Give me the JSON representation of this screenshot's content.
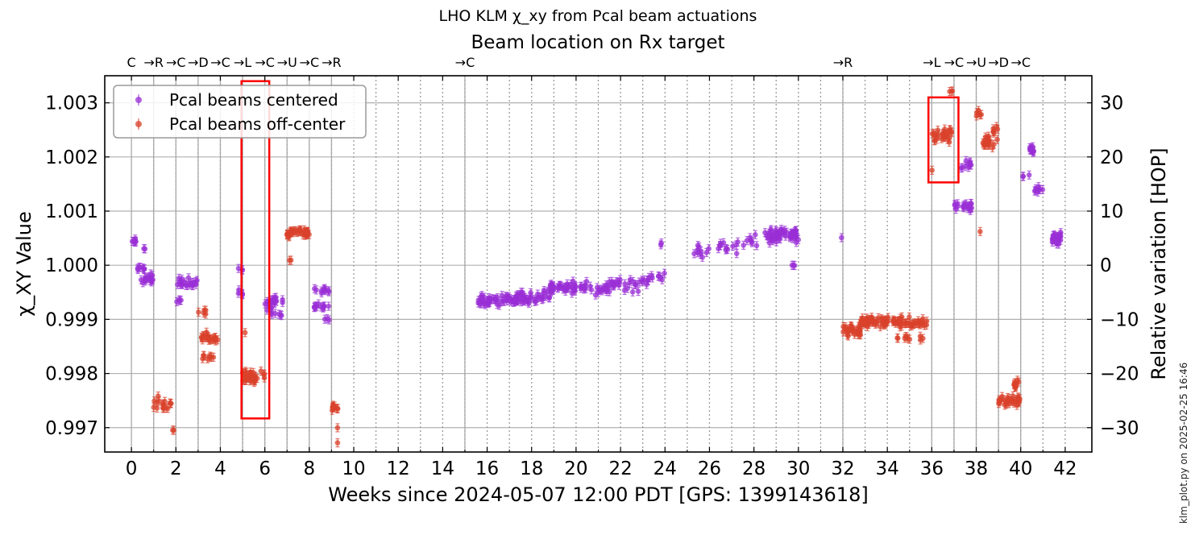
{
  "chart_data": {
    "type": "scatter",
    "suptitle": "LHO KLM χ_xy from Pcal beam actuations",
    "title": "Beam location on Rx target",
    "xlabel": "Weeks since 2024-05-07 12:00 PDT [GPS: 1399143618]",
    "ylabel_left": "χ_XY Value",
    "ylabel_right": "Relative variation [HOP]",
    "xlim": [
      -1.2,
      43.2
    ],
    "ylim": [
      0.99655,
      1.0035
    ],
    "x_ticks": [
      0,
      2,
      4,
      6,
      8,
      10,
      12,
      14,
      16,
      18,
      20,
      22,
      24,
      26,
      28,
      30,
      32,
      34,
      36,
      38,
      40,
      42
    ],
    "y_ticks": [
      0.997,
      0.998,
      0.999,
      1.0,
      1.001,
      1.002,
      1.003
    ],
    "y_tick_labels": [
      "0.997",
      "0.998",
      "0.999",
      "1.000",
      "1.001",
      "1.002",
      "1.003"
    ],
    "right_ticks": [
      -30,
      -20,
      -10,
      0,
      10,
      20,
      30
    ],
    "right_tick_labels": [
      "−30",
      "−20",
      "−10",
      "0",
      "10",
      "20",
      "30"
    ],
    "right_reference": 1.0,
    "right_scale_per_unit": 0.0001,
    "grid": true,
    "legend_position": "upper-left",
    "legend": [
      {
        "label": "Pcal beams centered",
        "color": "#9a2fd6"
      },
      {
        "label": "Pcal beams off-center",
        "color": "#d9412b"
      }
    ],
    "location_changes": [
      {
        "week": 0.0,
        "label": "C"
      },
      {
        "week": 1.0,
        "label": "→R"
      },
      {
        "week": 2.0,
        "label": "→C"
      },
      {
        "week": 3.0,
        "label": "→D"
      },
      {
        "week": 4.0,
        "label": "→C"
      },
      {
        "week": 5.0,
        "label": "→L"
      },
      {
        "week": 6.0,
        "label": "→C"
      },
      {
        "week": 7.0,
        "label": "→U"
      },
      {
        "week": 8.0,
        "label": "→C"
      },
      {
        "week": 9.0,
        "label": "→R"
      },
      {
        "week": 15.0,
        "label": "→C"
      },
      {
        "week": 32.0,
        "label": "→R"
      },
      {
        "week": 36.0,
        "label": "→L"
      },
      {
        "week": 37.0,
        "label": "→C"
      },
      {
        "week": 38.0,
        "label": "→U"
      },
      {
        "week": 39.0,
        "label": "→D"
      },
      {
        "week": 40.0,
        "label": "→C"
      }
    ],
    "weekly_lines": [
      1,
      2,
      3,
      4,
      5,
      6,
      7,
      8,
      9,
      10,
      11,
      12,
      13,
      14,
      15,
      16,
      17,
      18,
      19,
      20,
      21,
      22,
      23,
      24,
      25,
      26,
      27,
      28,
      29,
      30,
      31,
      32,
      33,
      34,
      35,
      36,
      37,
      38,
      39,
      40,
      41,
      42
    ],
    "highlight_boxes": [
      {
        "x_range": [
          4.95,
          6.2
        ],
        "y_range": [
          0.99717,
          1.0034
        ]
      },
      {
        "x_range": [
          35.85,
          37.2
        ],
        "y_range": [
          1.00153,
          1.0031
        ]
      }
    ],
    "series": [
      {
        "name": "Pcal beams centered",
        "color": "#9a2fd6",
        "clusters": [
          {
            "x": [
              0.0,
              0.3
            ],
            "y": 1.00045,
            "spread": 0.0001,
            "n": 6
          },
          {
            "x": [
              0.2,
              0.6
            ],
            "y": 0.99995,
            "spread": 5e-05,
            "n": 8
          },
          {
            "x": [
              0.4,
              1.0
            ],
            "y": 0.99975,
            "spread": 0.00012,
            "n": 14
          },
          {
            "x": [
              0.5,
              0.7
            ],
            "y": 1.0003,
            "spread": 3e-05,
            "n": 2
          },
          {
            "x": [
              2.0,
              3.0
            ],
            "y": 0.99968,
            "spread": 0.00013,
            "n": 22
          },
          {
            "x": [
              2.0,
              2.6
            ],
            "y": 0.99935,
            "spread": 3e-05,
            "n": 4
          },
          {
            "x": [
              4.8,
              5.0
            ],
            "y": 0.9999,
            "spread": 0.0001,
            "n": 3
          },
          {
            "x": [
              4.8,
              5.0
            ],
            "y": 0.9995,
            "spread": 0.0001,
            "n": 5
          },
          {
            "x": [
              6.0,
              6.3
            ],
            "y": 0.99925,
            "spread": 0.00012,
            "n": 6
          },
          {
            "x": [
              6.1,
              6.8
            ],
            "y": 0.99935,
            "spread": 8e-05,
            "n": 14
          },
          {
            "x": [
              6.2,
              6.8
            ],
            "y": 0.9991,
            "spread": 5e-05,
            "n": 6
          },
          {
            "x": [
              8.2,
              8.9
            ],
            "y": 0.99955,
            "spread": 8e-05,
            "n": 10
          },
          {
            "x": [
              8.2,
              8.9
            ],
            "y": 0.99925,
            "spread": 0.0001,
            "n": 12
          },
          {
            "x": [
              8.6,
              8.9
            ],
            "y": 0.999,
            "spread": 3e-05,
            "n": 3
          },
          {
            "x": [
              15.6,
              17.3
            ],
            "y": 0.99935,
            "spread": 0.00015,
            "n": 50
          },
          {
            "x": [
              17.3,
              18.8
            ],
            "y": 0.9994,
            "spread": 0.00016,
            "n": 45
          },
          {
            "x": [
              18.8,
              20.0
            ],
            "y": 0.9996,
            "spread": 0.00015,
            "n": 40
          },
          {
            "x": [
              20.2,
              21.5
            ],
            "y": 0.99955,
            "spread": 0.00016,
            "n": 25
          },
          {
            "x": [
              21.5,
              23.0
            ],
            "y": 0.99965,
            "spread": 0.00018,
            "n": 25
          },
          {
            "x": [
              23.0,
              24.0
            ],
            "y": 0.99975,
            "spread": 0.00015,
            "n": 12
          },
          {
            "x": [
              23.8,
              24.0
            ],
            "y": 1.0004,
            "spread": 3e-05,
            "n": 2
          },
          {
            "x": [
              25.2,
              26.2
            ],
            "y": 1.0002,
            "spread": 0.0002,
            "n": 10
          },
          {
            "x": [
              26.2,
              27.3
            ],
            "y": 1.00035,
            "spread": 0.00015,
            "n": 12
          },
          {
            "x": [
              27.5,
              28.3
            ],
            "y": 1.00045,
            "spread": 0.00018,
            "n": 8
          },
          {
            "x": [
              28.5,
              30.0
            ],
            "y": 1.00055,
            "spread": 0.00018,
            "n": 60
          },
          {
            "x": [
              29.5,
              30.0
            ],
            "y": 1.0,
            "spread": 5e-05,
            "n": 3
          },
          {
            "x": [
              31.9,
              32.0
            ],
            "y": 1.0005,
            "spread": 2e-05,
            "n": 1
          },
          {
            "x": [
              37.0,
              37.8
            ],
            "y": 1.0011,
            "spread": 0.00012,
            "n": 18
          },
          {
            "x": [
              37.3,
              37.8
            ],
            "y": 1.00185,
            "spread": 0.00018,
            "n": 10
          },
          {
            "x": [
              40.1,
              40.4
            ],
            "y": 1.00165,
            "spread": 5e-05,
            "n": 3
          },
          {
            "x": [
              40.4,
              40.7
            ],
            "y": 1.00215,
            "spread": 8e-05,
            "n": 12
          },
          {
            "x": [
              40.6,
              41.0
            ],
            "y": 1.0014,
            "spread": 8e-05,
            "n": 8
          },
          {
            "x": [
              41.4,
              41.8
            ],
            "y": 1.0005,
            "spread": 0.00015,
            "n": 30
          }
        ]
      },
      {
        "name": "Pcal beams off-center",
        "color": "#d9412b",
        "clusters": [
          {
            "x": [
              1.0,
              1.8
            ],
            "y": 0.99745,
            "spread": 0.00018,
            "n": 16
          },
          {
            "x": [
              1.8,
              2.0
            ],
            "y": 0.99695,
            "spread": 3e-05,
            "n": 2
          },
          {
            "x": [
              3.0,
              3.4
            ],
            "y": 0.99915,
            "spread": 6e-05,
            "n": 5
          },
          {
            "x": [
              3.1,
              3.9
            ],
            "y": 0.99865,
            "spread": 0.00015,
            "n": 22
          },
          {
            "x": [
              3.2,
              3.7
            ],
            "y": 0.9983,
            "spread": 8e-05,
            "n": 8
          },
          {
            "x": [
              5.0,
              6.0
            ],
            "y": 0.99795,
            "spread": 0.00018,
            "n": 34
          },
          {
            "x": [
              5.0,
              5.2
            ],
            "y": 0.99875,
            "spread": 3e-05,
            "n": 1
          },
          {
            "x": [
              7.0,
              8.0
            ],
            "y": 1.0006,
            "spread": 0.0001,
            "n": 40
          },
          {
            "x": [
              7.0,
              7.2
            ],
            "y": 1.0001,
            "spread": 3e-05,
            "n": 2
          },
          {
            "x": [
              9.0,
              9.3
            ],
            "y": 0.99735,
            "spread": 0.00012,
            "n": 10
          },
          {
            "x": [
              9.2,
              9.3
            ],
            "y": 0.997,
            "spread": 3e-05,
            "n": 1
          },
          {
            "x": [
              9.2,
              9.3
            ],
            "y": 0.99672,
            "spread": 2e-05,
            "n": 1
          },
          {
            "x": [
              32.0,
              32.8
            ],
            "y": 0.9988,
            "spread": 0.00015,
            "n": 30
          },
          {
            "x": [
              32.8,
              35.8
            ],
            "y": 0.99895,
            "spread": 0.00012,
            "n": 90
          },
          {
            "x": [
              34.0,
              35.8
            ],
            "y": 0.99865,
            "spread": 8e-05,
            "n": 10
          },
          {
            "x": [
              36.0,
              36.9
            ],
            "y": 1.0024,
            "spread": 0.00022,
            "n": 30
          },
          {
            "x": [
              36.0,
              36.4
            ],
            "y": 1.00175,
            "spread": 3e-05,
            "n": 1
          },
          {
            "x": [
              36.7,
              37.0
            ],
            "y": 1.0032,
            "spread": 8e-05,
            "n": 3
          },
          {
            "x": [
              38.0,
              38.3
            ],
            "y": 1.0028,
            "spread": 8e-05,
            "n": 6
          },
          {
            "x": [
              38.1,
              38.2
            ],
            "y": 1.00062,
            "spread": 2e-05,
            "n": 1
          },
          {
            "x": [
              38.3,
              39.0
            ],
            "y": 1.0023,
            "spread": 0.00015,
            "n": 20
          },
          {
            "x": [
              38.7,
              39.0
            ],
            "y": 1.0025,
            "spread": 0.0001,
            "n": 6
          },
          {
            "x": [
              39.0,
              40.0
            ],
            "y": 0.9975,
            "spread": 0.00012,
            "n": 30
          },
          {
            "x": [
              39.7,
              40.0
            ],
            "y": 0.9978,
            "spread": 0.00012,
            "n": 10
          }
        ]
      }
    ]
  },
  "footer": {
    "stamp": "klm_plot.py on 2025-02-25 16:46"
  }
}
